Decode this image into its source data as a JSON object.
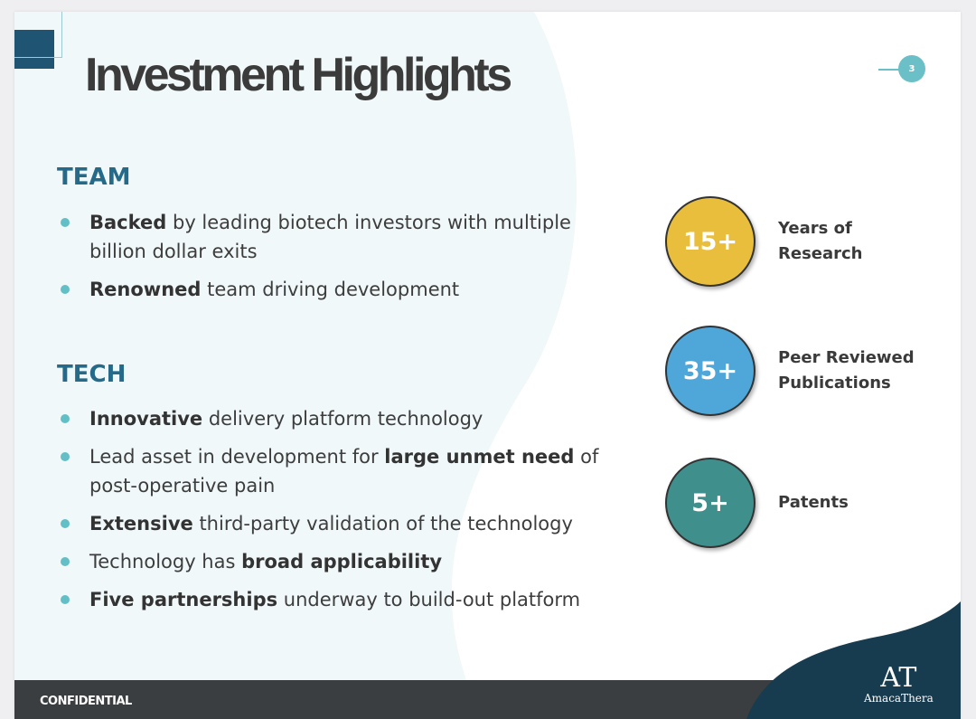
{
  "slide": {
    "title": "Investment Highlights",
    "page_number": "3",
    "team": {
      "heading": "TEAM",
      "bullets": [
        {
          "bold": "Backed",
          "rest": " by leading biotech investors with multiple billion dollar exits"
        },
        {
          "bold": "Renowned",
          "rest": " team driving development"
        }
      ]
    },
    "tech": {
      "heading": "TECH",
      "bullets": [
        {
          "bold": "Innovative",
          "rest": " delivery platform technology"
        },
        {
          "pre": "Lead asset in development for ",
          "bold": "large unmet need",
          "rest": " of post-operative pain"
        },
        {
          "bold": "Extensive",
          "rest": " third-party validation of the technology"
        },
        {
          "pre": "Technology has ",
          "bold": "broad applicability"
        },
        {
          "bold": "Five partnerships",
          "rest": " underway to build-out platform"
        }
      ]
    },
    "stats": [
      {
        "value": "15+",
        "label": "Years of Research",
        "color": "#e8be3c"
      },
      {
        "value": "35+",
        "label": "Peer Reviewed Publications",
        "color": "#4ea6d9"
      },
      {
        "value": "5+",
        "label": "Patents",
        "color": "#3f8f8c"
      }
    ],
    "footer": {
      "confidential": "CONFIDENTIAL",
      "logo_mark": "AT",
      "logo_name": "AmacaThera"
    }
  }
}
